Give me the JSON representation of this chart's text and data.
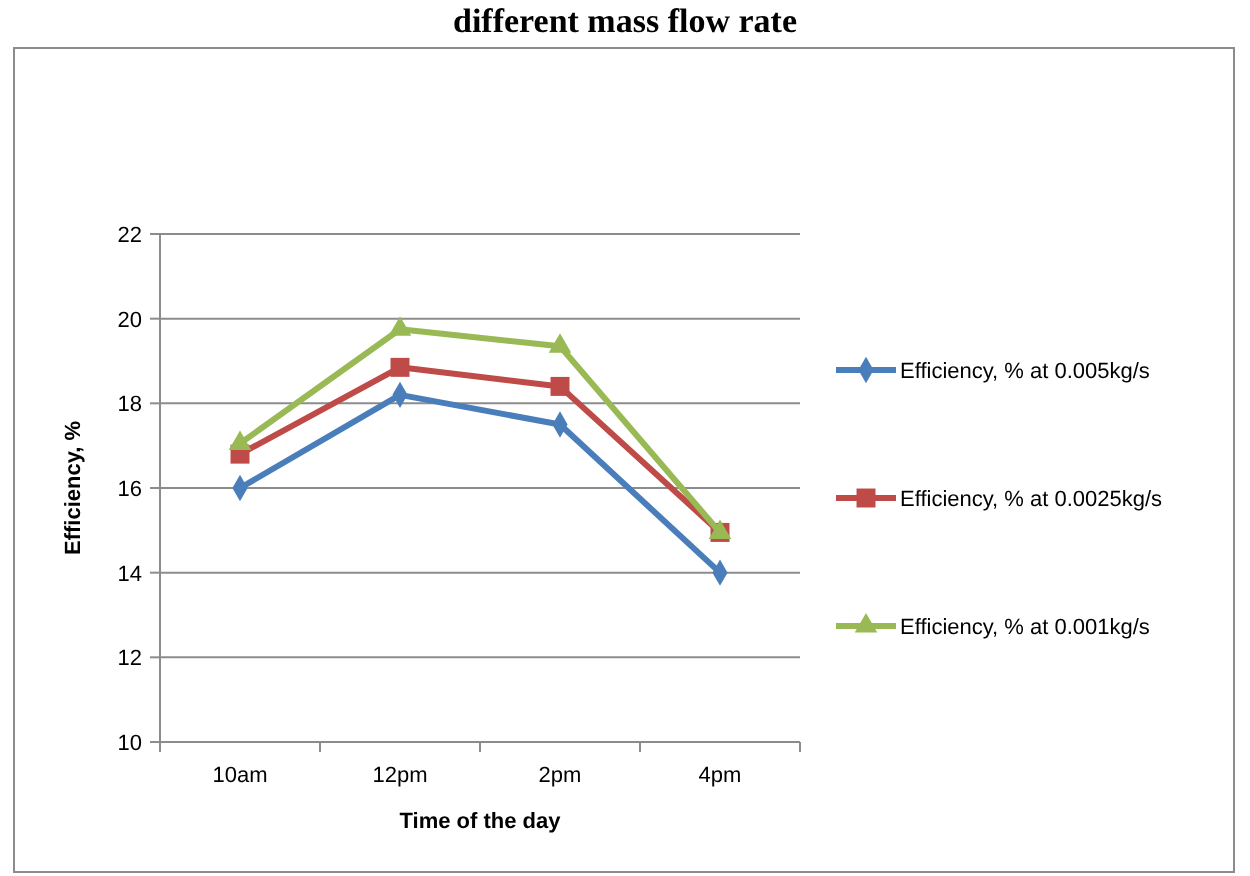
{
  "chart_data": {
    "type": "line",
    "title": "different mass flow rate",
    "xlabel": "Time of the day",
    "ylabel": "Efficiency, %",
    "categories": [
      "10am",
      "12pm",
      "2pm",
      "4pm"
    ],
    "series": [
      {
        "name": "Efficiency, % at 0.005kg/s",
        "color": "#4a7ebb",
        "values": [
          16,
          18.2,
          17.5,
          14
        ],
        "marker": "diamond"
      },
      {
        "name": "Efficiency, % at 0.0025kg/s",
        "color": "#be4b48",
        "values": [
          16.8,
          18.85,
          18.4,
          14.95
        ],
        "marker": "square"
      },
      {
        "name": "Efficiency, % at 0.001kg/s",
        "color": "#98b954",
        "values": [
          17.05,
          19.75,
          19.35,
          14.95
        ],
        "marker": "triangle"
      }
    ],
    "ylim": [
      10,
      22
    ],
    "yticks": [
      10,
      12,
      14,
      16,
      18,
      20,
      22
    ],
    "grid": "y",
    "legend": "right"
  }
}
